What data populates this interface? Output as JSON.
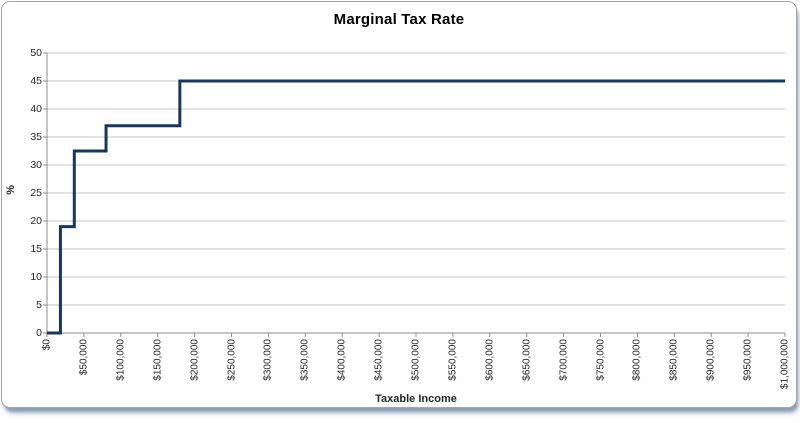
{
  "page": {
    "background": "#FFFFFF"
  },
  "chart": {
    "title": "Marginal Tax Rate",
    "x_axis_title": "Taxable Income",
    "y_axis_title": "%"
  },
  "style": {
    "series_line_color": "#17375E",
    "gridline_color": "#C5C5C5",
    "axis_line_color": "#8E8E8E",
    "tick_label_color": "#262626",
    "title_color": "#000000",
    "frame_border_color": "#A6A6A6",
    "frame_shadow_color": "#8CA2BE",
    "plot_background": "#FFFFFF"
  },
  "chart_data": {
    "type": "line",
    "subtype": "step",
    "title": "Marginal Tax Rate",
    "xlabel": "Taxable Income",
    "ylabel": "%",
    "xlim": [
      0,
      1000000
    ],
    "ylim": [
      0,
      50
    ],
    "grid": "horizontal-only",
    "legend": "none",
    "x_ticks": [
      {
        "value": 0,
        "label": "$0"
      },
      {
        "value": 50000,
        "label": "$50,000"
      },
      {
        "value": 100000,
        "label": "$100,000"
      },
      {
        "value": 150000,
        "label": "$150,000"
      },
      {
        "value": 200000,
        "label": "$200,000"
      },
      {
        "value": 250000,
        "label": "$250,000"
      },
      {
        "value": 300000,
        "label": "$300,000"
      },
      {
        "value": 350000,
        "label": "$350,000"
      },
      {
        "value": 400000,
        "label": "$400,000"
      },
      {
        "value": 450000,
        "label": "$450,000"
      },
      {
        "value": 500000,
        "label": "$500,000"
      },
      {
        "value": 550000,
        "label": "$550,000"
      },
      {
        "value": 600000,
        "label": "$600,000"
      },
      {
        "value": 650000,
        "label": "$650,000"
      },
      {
        "value": 700000,
        "label": "$700,000"
      },
      {
        "value": 750000,
        "label": "$750,000"
      },
      {
        "value": 800000,
        "label": "$800,000"
      },
      {
        "value": 850000,
        "label": "$850,000"
      },
      {
        "value": 900000,
        "label": "$900,000"
      },
      {
        "value": 950000,
        "label": "$950,000"
      },
      {
        "value": 1000000,
        "label": "$1,000,000"
      }
    ],
    "y_ticks": [
      {
        "value": 0,
        "label": "0"
      },
      {
        "value": 5,
        "label": "5"
      },
      {
        "value": 10,
        "label": "10"
      },
      {
        "value": 15,
        "label": "15"
      },
      {
        "value": 20,
        "label": "20"
      },
      {
        "value": 25,
        "label": "25"
      },
      {
        "value": 30,
        "label": "30"
      },
      {
        "value": 35,
        "label": "35"
      },
      {
        "value": 40,
        "label": "40"
      },
      {
        "value": 45,
        "label": "45"
      },
      {
        "value": 50,
        "label": "50"
      }
    ],
    "series": [
      {
        "name": "Marginal Tax Rate",
        "color": "#17375E",
        "points": [
          [
            0,
            0
          ],
          [
            18200,
            0
          ],
          [
            18200,
            19
          ],
          [
            37000,
            19
          ],
          [
            37000,
            32.5
          ],
          [
            80000,
            32.5
          ],
          [
            80000,
            37
          ],
          [
            180000,
            37
          ],
          [
            180000,
            45
          ],
          [
            1000000,
            45
          ]
        ]
      }
    ],
    "tax_brackets_read_from_chart": [
      {
        "income_from": 0,
        "income_to": 18200,
        "rate_pct": 0
      },
      {
        "income_from": 18200,
        "income_to": 37000,
        "rate_pct": 19
      },
      {
        "income_from": 37000,
        "income_to": 80000,
        "rate_pct": 32.5
      },
      {
        "income_from": 80000,
        "income_to": 180000,
        "rate_pct": 37
      },
      {
        "income_from": 180000,
        "income_to": 1000000,
        "rate_pct": 45
      }
    ]
  }
}
